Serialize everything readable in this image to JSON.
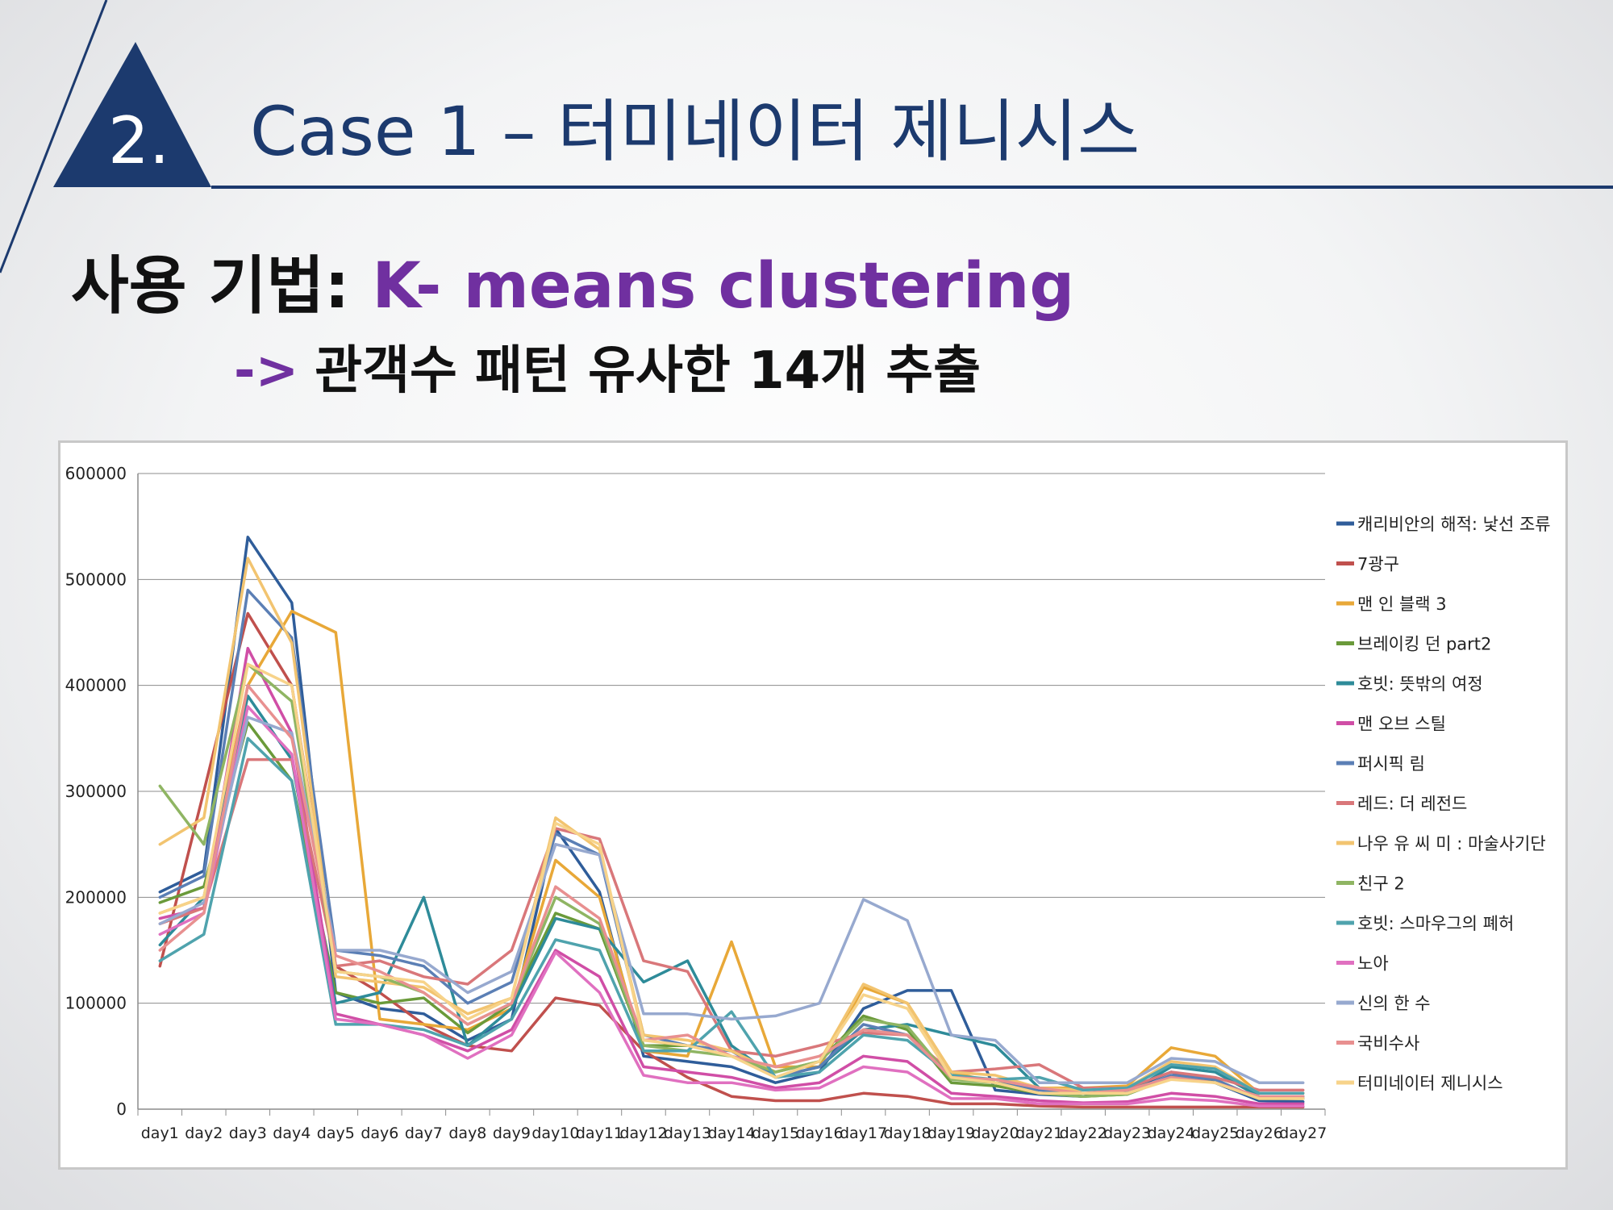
{
  "slide": {
    "number": "2.",
    "title": "Case 1 – 터미네이터 제니시스",
    "subtitle_label": "사용 기법:",
    "subtitle_method": "K- means clustering",
    "result_arrow": "->",
    "result_text": "관객수 패턴 유사한 14개 추출",
    "colors": {
      "navy": "#1c3a6e",
      "purple": "#7030a0"
    }
  },
  "chart_data": {
    "type": "line",
    "categories": [
      "day1",
      "day2",
      "day3",
      "day4",
      "day5",
      "day6",
      "day7",
      "day8",
      "day9",
      "day10",
      "day11",
      "day12",
      "day13",
      "day14",
      "day15",
      "day16",
      "day17",
      "day18",
      "day19",
      "day20",
      "day21",
      "day22",
      "day23",
      "day24",
      "day25",
      "day26",
      "day27"
    ],
    "ylim": [
      0,
      600000
    ],
    "yticks": [
      0,
      100000,
      200000,
      300000,
      400000,
      500000,
      600000
    ],
    "ytick_labels": [
      "0",
      "100000",
      "200000",
      "300000",
      "400000",
      "500000",
      "600000"
    ],
    "grid": true,
    "legend_position": "right",
    "series": [
      {
        "name": "캐리비안의 해적: 낯선 조류",
        "color": "#2f5d9a",
        "values": [
          205000,
          225000,
          540000,
          478000,
          110000,
          95000,
          90000,
          65000,
          85000,
          265000,
          205000,
          50000,
          45000,
          40000,
          25000,
          35000,
          95000,
          112000,
          112000,
          18000,
          14000,
          12000,
          18000,
          35000,
          25000,
          8000,
          7000
        ]
      },
      {
        "name": "7광구",
        "color": "#c0504d",
        "values": [
          135000,
          300000,
          468000,
          400000,
          135000,
          110000,
          80000,
          60000,
          55000,
          105000,
          98000,
          55000,
          30000,
          12000,
          8000,
          8000,
          15000,
          12000,
          5000,
          5000,
          3000,
          2000,
          2000,
          2000,
          2000,
          2000,
          2000
        ]
      },
      {
        "name": "맨 인 블랙 3",
        "color": "#e8a838",
        "values": [
          185000,
          200000,
          400000,
          470000,
          450000,
          85000,
          80000,
          75000,
          95000,
          235000,
          200000,
          55000,
          50000,
          158000,
          40000,
          40000,
          115000,
          100000,
          35000,
          25000,
          20000,
          20000,
          22000,
          58000,
          50000,
          15000,
          15000
        ]
      },
      {
        "name": "브레이킹 던 part2",
        "color": "#6a9a3a",
        "values": [
          195000,
          210000,
          365000,
          310000,
          110000,
          100000,
          105000,
          72000,
          100000,
          185000,
          170000,
          60000,
          60000,
          55000,
          35000,
          45000,
          88000,
          75000,
          25000,
          22000,
          15000,
          12000,
          14000,
          30000,
          28000,
          10000,
          10000
        ]
      },
      {
        "name": "호빗: 뜻밖의 여정",
        "color": "#2e8b99",
        "values": [
          155000,
          200000,
          390000,
          330000,
          100000,
          110000,
          200000,
          60000,
          95000,
          180000,
          170000,
          120000,
          140000,
          60000,
          30000,
          40000,
          75000,
          80000,
          70000,
          60000,
          20000,
          15000,
          15000,
          40000,
          35000,
          12000,
          12000
        ]
      },
      {
        "name": "맨 오브 스틸",
        "color": "#d04ea6",
        "values": [
          180000,
          190000,
          435000,
          355000,
          90000,
          80000,
          70000,
          55000,
          75000,
          150000,
          125000,
          40000,
          35000,
          30000,
          20000,
          25000,
          50000,
          45000,
          15000,
          12000,
          8000,
          6000,
          7000,
          15000,
          12000,
          5000,
          5000
        ]
      },
      {
        "name": "퍼시픽 림",
        "color": "#5b7fb5",
        "values": [
          200000,
          220000,
          490000,
          445000,
          150000,
          145000,
          135000,
          100000,
          120000,
          260000,
          240000,
          70000,
          60000,
          55000,
          30000,
          40000,
          80000,
          70000,
          30000,
          25000,
          18000,
          15000,
          15000,
          32000,
          28000,
          10000,
          10000
        ]
      },
      {
        "name": "레드: 더 레전드",
        "color": "#d9777a",
        "values": [
          175000,
          190000,
          330000,
          330000,
          135000,
          140000,
          125000,
          118000,
          150000,
          265000,
          255000,
          140000,
          130000,
          55000,
          50000,
          60000,
          72000,
          70000,
          35000,
          38000,
          42000,
          20000,
          20000,
          35000,
          30000,
          18000,
          18000
        ]
      },
      {
        "name": "나우 유 씨 미 : 마술사기단",
        "color": "#f2c470",
        "values": [
          250000,
          275000,
          520000,
          440000,
          125000,
          120000,
          115000,
          90000,
          105000,
          275000,
          245000,
          70000,
          65000,
          55000,
          35000,
          45000,
          118000,
          100000,
          35000,
          32000,
          20000,
          18000,
          20000,
          45000,
          40000,
          15000,
          15000
        ]
      },
      {
        "name": "친구 2",
        "color": "#8fb563",
        "values": [
          305000,
          250000,
          420000,
          385000,
          130000,
          125000,
          110000,
          80000,
          100000,
          200000,
          175000,
          60000,
          55000,
          50000,
          35000,
          45000,
          85000,
          78000,
          28000,
          25000,
          15000,
          12000,
          14000,
          30000,
          25000,
          10000,
          10000
        ]
      },
      {
        "name": "호빗: 스마우그의 폐허",
        "color": "#4fa3ad",
        "values": [
          140000,
          165000,
          350000,
          310000,
          80000,
          80000,
          75000,
          60000,
          85000,
          160000,
          150000,
          55000,
          55000,
          92000,
          30000,
          35000,
          70000,
          65000,
          32000,
          28000,
          30000,
          18000,
          20000,
          42000,
          38000,
          15000,
          15000
        ]
      },
      {
        "name": "노아",
        "color": "#e070c0",
        "values": [
          165000,
          185000,
          380000,
          335000,
          85000,
          80000,
          70000,
          48000,
          70000,
          148000,
          110000,
          32000,
          25000,
          25000,
          18000,
          20000,
          40000,
          35000,
          10000,
          10000,
          5000,
          5000,
          5000,
          10000,
          8000,
          3000,
          3000
        ]
      },
      {
        "name": "신의 한 수",
        "color": "#97a9cf",
        "values": [
          175000,
          195000,
          370000,
          355000,
          150000,
          150000,
          140000,
          110000,
          130000,
          250000,
          240000,
          90000,
          90000,
          85000,
          88000,
          100000,
          198000,
          178000,
          70000,
          65000,
          25000,
          25000,
          25000,
          48000,
          45000,
          25000,
          25000
        ]
      },
      {
        "name": "국비수사",
        "color": "#e89090",
        "values": [
          150000,
          185000,
          400000,
          350000,
          145000,
          130000,
          110000,
          80000,
          100000,
          210000,
          180000,
          65000,
          70000,
          50000,
          40000,
          50000,
          75000,
          70000,
          30000,
          28000,
          20000,
          15000,
          18000,
          30000,
          25000,
          12000,
          12000
        ]
      },
      {
        "name": "터미네이터 제니시스",
        "color": "#f7d38a",
        "values": [
          185000,
          200000,
          420000,
          400000,
          130000,
          125000,
          120000,
          85000,
          105000,
          270000,
          250000,
          65000,
          60000,
          50000,
          30000,
          45000,
          108000,
          95000,
          30000,
          25000,
          15000,
          15000,
          15000,
          28000,
          25000,
          10000,
          10000
        ]
      }
    ]
  }
}
